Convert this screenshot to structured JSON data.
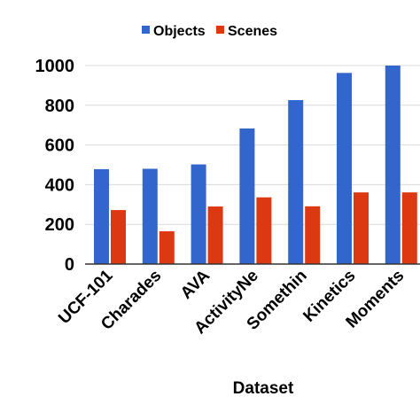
{
  "chart_data": {
    "type": "bar",
    "categories": [
      "UCF-101",
      "Charades",
      "AVA",
      "ActivityNe",
      "Somethin",
      "Kinetics",
      "Moments"
    ],
    "series": [
      {
        "name": "Objects",
        "color": "#3366cc",
        "values": [
          478,
          480,
          502,
          683,
          826,
          963,
          1000
        ]
      },
      {
        "name": "Scenes",
        "color": "#dc3912",
        "values": [
          272,
          165,
          290,
          336,
          291,
          361,
          361
        ]
      }
    ],
    "xlabel": "Dataset",
    "ylabel": "",
    "ylim": [
      0,
      1000
    ],
    "yticks": [
      0,
      200,
      400,
      600,
      800,
      1000
    ],
    "grid": true,
    "legend_position": "top-center"
  }
}
